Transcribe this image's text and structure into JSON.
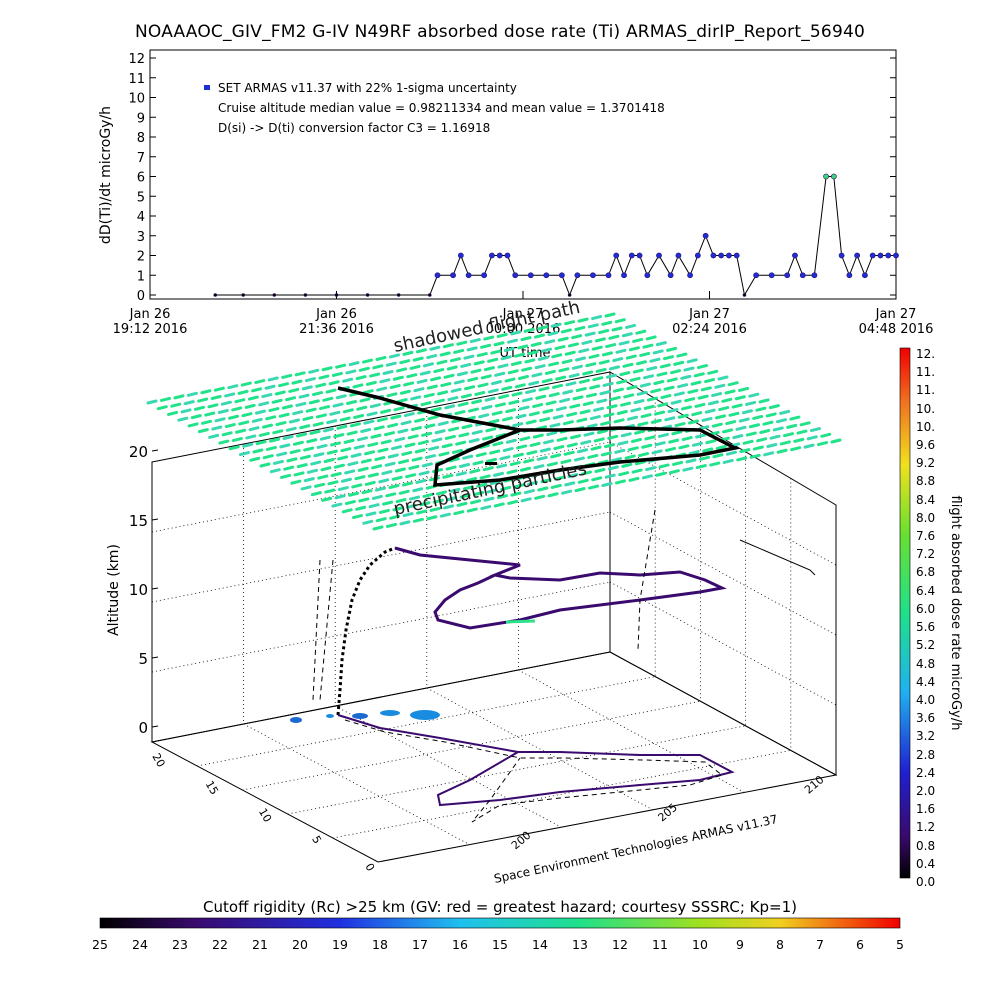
{
  "title": "NOAAAOC_GIV_FM2 G-IV    N49RF  absorbed dose rate (Ti) ARMAS_dirIP_Report_56940",
  "colors": {
    "dose_fill": "#1a2fd6",
    "dose_edge": "#3b0e6e",
    "peak_fill": "#37d67a",
    "track_dark": "#3a0a6e",
    "grid_green": "#22e28a",
    "contour_blue": "#1a8ce0"
  },
  "time_series": {
    "ylabel": "dD(Ti)/dt microGy/h",
    "xlabel": "UT time",
    "yticks": [
      "0",
      "1",
      "2",
      "3",
      "4",
      "5",
      "6",
      "7",
      "8",
      "9",
      "10",
      "11",
      "12"
    ],
    "xticks": [
      {
        "top": "Jan 26",
        "bottom": "19:12 2016"
      },
      {
        "top": "Jan 26",
        "bottom": "21:36 2016"
      },
      {
        "top": "Jan 27",
        "bottom": "00:00 2016"
      },
      {
        "top": "Jan 27",
        "bottom": "02:24 2016"
      },
      {
        "top": "Jan 27",
        "bottom": "04:48 2016"
      }
    ],
    "legend": {
      "series": "SET ARMAS v11.37 with 22% 1-sigma uncertainty",
      "line2": "Cruise altitude median value = 0.98211334 and mean value = 1.3701418",
      "line3": "D(si) -> D(ti) conversion factor C3 = 1.16918"
    }
  },
  "chart_data": [
    {
      "type": "line",
      "title": "NOAAAOC_GIV_FM2 G-IV    N49RF  absorbed dose rate (Ti) ARMAS_dirIP_Report_56940",
      "xlabel": "UT time",
      "ylabel": "dD(Ti)/dt microGy/h",
      "ylim": [
        0,
        12
      ],
      "x_hours_since": "Jan 26 19:12 2016",
      "xlim": [
        0,
        9.6
      ],
      "series": [
        {
          "name": "SET ARMAS v11.37 with 22% 1-sigma uncertainty",
          "points": [
            [
              0.84,
              0
            ],
            [
              1.2,
              0
            ],
            [
              1.6,
              0
            ],
            [
              2.0,
              0
            ],
            [
              2.4,
              0
            ],
            [
              2.8,
              0
            ],
            [
              3.2,
              0
            ],
            [
              3.6,
              0
            ],
            [
              3.7,
              1
            ],
            [
              3.9,
              1
            ],
            [
              4.0,
              2
            ],
            [
              4.1,
              1
            ],
            [
              4.3,
              1
            ],
            [
              4.4,
              2
            ],
            [
              4.5,
              2
            ],
            [
              4.6,
              2
            ],
            [
              4.7,
              1
            ],
            [
              4.9,
              1
            ],
            [
              5.1,
              1
            ],
            [
              5.3,
              1
            ],
            [
              5.4,
              0
            ],
            [
              5.5,
              1
            ],
            [
              5.7,
              1
            ],
            [
              5.9,
              1
            ],
            [
              6.0,
              2
            ],
            [
              6.1,
              1
            ],
            [
              6.2,
              2
            ],
            [
              6.3,
              2
            ],
            [
              6.4,
              1
            ],
            [
              6.55,
              2
            ],
            [
              6.7,
              1
            ],
            [
              6.8,
              2
            ],
            [
              6.95,
              1
            ],
            [
              7.05,
              2
            ],
            [
              7.15,
              3
            ],
            [
              7.25,
              2
            ],
            [
              7.35,
              2
            ],
            [
              7.45,
              2
            ],
            [
              7.55,
              2
            ],
            [
              7.65,
              0
            ],
            [
              7.8,
              1
            ],
            [
              8.0,
              1
            ],
            [
              8.2,
              1
            ],
            [
              8.3,
              2
            ],
            [
              8.4,
              1
            ],
            [
              8.55,
              1
            ],
            [
              8.7,
              6
            ],
            [
              8.8,
              6
            ],
            [
              8.9,
              2
            ],
            [
              9.0,
              1
            ],
            [
              9.1,
              2
            ],
            [
              9.2,
              1
            ],
            [
              9.3,
              2
            ],
            [
              9.4,
              2
            ],
            [
              9.5,
              2
            ],
            [
              9.6,
              2
            ]
          ]
        }
      ],
      "stats": {
        "cruise_median": 0.98211334,
        "cruise_mean": 1.3701418,
        "conversion_factor_C3": 1.16918
      }
    },
    {
      "type": "line",
      "title": "",
      "zlabel": "Altitude (km)",
      "zlim": [
        0,
        20
      ],
      "x_ticks": [
        "200",
        "205",
        "210"
      ],
      "y_ticks": [
        "0",
        "5",
        "10",
        "15",
        "20"
      ],
      "note": "3D flight track with ground projection; surface colored by cutoff rigidity"
    }
  ],
  "plot3d": {
    "zlabel": "Altitude (km)",
    "zticks": [
      "0",
      "5",
      "10",
      "15",
      "20"
    ],
    "xticks": [
      "200",
      "205",
      "210"
    ],
    "yticks": [
      "0",
      "5",
      "10",
      "15",
      "20"
    ],
    "annotations": {
      "shadowed": "shadowed flight path",
      "precip": "precipitating particles"
    },
    "credit": "Space Environment Technologies ARMAS v11.37"
  },
  "colorbar_dose": {
    "title": "flight absorbed dose rate microGy/h",
    "labels": [
      "12.",
      "11.",
      "11.",
      "10.",
      "10.",
      "9.6",
      "9.2",
      "8.8",
      "8.4",
      "8.0",
      "7.6",
      "7.2",
      "6.8",
      "6.4",
      "6.0",
      "5.6",
      "5.2",
      "4.8",
      "4.4",
      "4.0",
      "3.6",
      "3.2",
      "2.8",
      "2.4",
      "2.0",
      "1.6",
      "1.2",
      "0.8",
      "0.4",
      "0.0"
    ]
  },
  "colorbar_rc": {
    "title": "Cutoff rigidity (Rc) >25 km (GV: red = greatest hazard; courtesy SSSRC; Kp=1)",
    "labels": [
      "25",
      "24",
      "23",
      "22",
      "21",
      "20",
      "19",
      "18",
      "17",
      "16",
      "15",
      "14",
      "13",
      "12",
      "11",
      "10",
      "9",
      "8",
      "7",
      "6",
      "5"
    ]
  }
}
